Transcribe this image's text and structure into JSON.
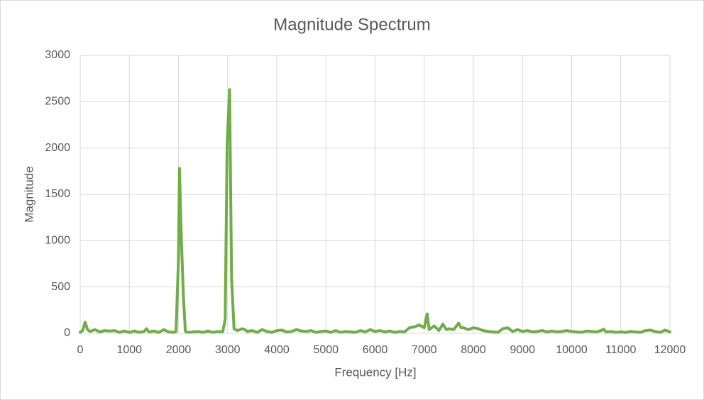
{
  "chart_data": {
    "type": "line",
    "title": "Magnitude Spectrum",
    "x_label": "Frequency [Hz]",
    "y_label": "Magnitude",
    "x": [
      0,
      50,
      100,
      150,
      200,
      300,
      400,
      500,
      600,
      700,
      800,
      900,
      1000,
      1100,
      1200,
      1300,
      1350,
      1400,
      1500,
      1600,
      1700,
      1800,
      1900,
      1950,
      2000,
      2020,
      2060,
      2100,
      2140,
      2200,
      2300,
      2400,
      2500,
      2600,
      2700,
      2800,
      2900,
      2950,
      2990,
      3040,
      3080,
      3130,
      3200,
      3300,
      3350,
      3400,
      3500,
      3600,
      3700,
      3800,
      3900,
      4000,
      4100,
      4200,
      4300,
      4400,
      4500,
      4600,
      4700,
      4800,
      4900,
      5000,
      5100,
      5200,
      5300,
      5400,
      5500,
      5600,
      5700,
      5800,
      5900,
      6000,
      6100,
      6200,
      6300,
      6400,
      6500,
      6600,
      6700,
      6800,
      6900,
      7000,
      7060,
      7100,
      7200,
      7300,
      7380,
      7450,
      7500,
      7600,
      7700,
      7750,
      7800,
      7900,
      8000,
      8100,
      8200,
      8300,
      8400,
      8500,
      8600,
      8700,
      8800,
      8900,
      9000,
      9100,
      9200,
      9300,
      9400,
      9500,
      9600,
      9700,
      9800,
      9900,
      10000,
      10100,
      10200,
      10300,
      10400,
      10500,
      10600,
      10650,
      10700,
      10800,
      10900,
      11000,
      11100,
      11200,
      11300,
      11400,
      11500,
      11600,
      11700,
      11800,
      11900,
      12000
    ],
    "values": [
      10,
      30,
      120,
      40,
      20,
      40,
      15,
      30,
      25,
      30,
      10,
      25,
      10,
      25,
      10,
      20,
      50,
      15,
      25,
      10,
      40,
      15,
      10,
      20,
      800,
      1780,
      1000,
      400,
      20,
      10,
      15,
      20,
      10,
      25,
      10,
      20,
      15,
      150,
      2050,
      2630,
      600,
      50,
      30,
      50,
      40,
      20,
      30,
      10,
      40,
      20,
      10,
      30,
      35,
      15,
      20,
      40,
      25,
      20,
      30,
      10,
      20,
      25,
      10,
      30,
      10,
      20,
      15,
      10,
      30,
      15,
      40,
      20,
      30,
      15,
      25,
      10,
      20,
      15,
      60,
      70,
      90,
      60,
      210,
      40,
      80,
      30,
      100,
      40,
      50,
      40,
      110,
      60,
      60,
      40,
      60,
      50,
      30,
      20,
      15,
      10,
      50,
      60,
      20,
      40,
      20,
      30,
      15,
      20,
      30,
      15,
      25,
      15,
      20,
      30,
      20,
      15,
      10,
      25,
      20,
      15,
      30,
      45,
      15,
      20,
      10,
      15,
      10,
      20,
      15,
      10,
      30,
      35,
      20,
      10,
      35,
      15
    ],
    "color": "#70ad47",
    "xlim": [
      0,
      12000
    ],
    "xticks": [
      0,
      1000,
      2000,
      3000,
      4000,
      5000,
      6000,
      7000,
      8000,
      9000,
      10000,
      11000,
      12000
    ],
    "ylim": [
      0,
      3000
    ],
    "yticks": [
      0,
      500,
      1000,
      1500,
      2000,
      2500,
      3000
    ],
    "grid": true
  }
}
